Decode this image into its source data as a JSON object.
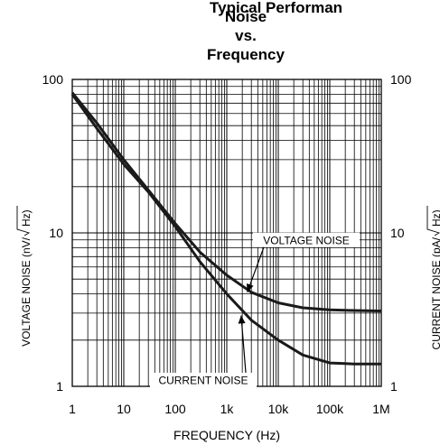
{
  "header": {
    "clipped_title": "Typical Performan",
    "title_line1": "Noise",
    "title_line2": "vs.",
    "title_line3": "Frequency"
  },
  "chart_data": {
    "type": "line",
    "x_scale": "log",
    "y_scale": "log",
    "xlim": [
      1,
      1000000
    ],
    "ylim": [
      1,
      100
    ],
    "grid": true,
    "xlabel": "FREQUENCY (Hz)",
    "ylabel_left": "VOLTAGE NOISE (nV/√Hz)",
    "ylabel_right": "CURRENT NOISE (pA/√Hz)",
    "ylabel_left_prefix": "VOLTAGE NOISE (nV/",
    "ylabel_left_suffix": "Hz)",
    "ylabel_right_prefix": "CURRENT NOISE (pA/",
    "ylabel_right_suffix": "Hz)",
    "x_tick_labels": [
      "1",
      "10",
      "100",
      "1k",
      "10k",
      "100k",
      "1M"
    ],
    "y_tick_labels_left": [
      "1",
      "10",
      "100"
    ],
    "y_tick_labels_right": [
      "1",
      "10",
      "100"
    ],
    "series": [
      {
        "name": "VOLTAGE NOISE",
        "x": [
          1,
          3,
          10,
          30,
          100,
          300,
          1000,
          3000,
          10000,
          30000,
          100000,
          300000,
          1000000
        ],
        "y": [
          82,
          52,
          30,
          19,
          11.5,
          7.5,
          5.3,
          4.1,
          3.5,
          3.25,
          3.15,
          3.12,
          3.1
        ]
      },
      {
        "name": "CURRENT NOISE",
        "x": [
          1,
          3,
          10,
          30,
          100,
          300,
          1000,
          3000,
          10000,
          30000,
          100000,
          300000,
          1000000
        ],
        "y": [
          80,
          48,
          28,
          18.5,
          11,
          6.5,
          4.0,
          2.7,
          2.0,
          1.6,
          1.42,
          1.4,
          1.4
        ]
      }
    ],
    "annotations": [
      {
        "text": "VOLTAGE NOISE",
        "label_x": 35000,
        "label_y": 9.0,
        "arrow_x": 2500,
        "arrow_y": 4.1
      },
      {
        "text": "CURRENT NOISE",
        "label_x": 350,
        "label_y": 1.1,
        "arrow_x": 1900,
        "arrow_y": 2.9
      }
    ]
  }
}
